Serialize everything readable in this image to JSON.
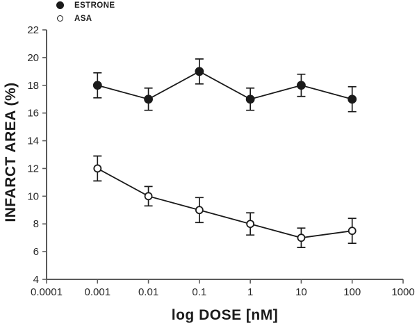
{
  "legend": {
    "items": [
      {
        "label": "ESTRONE",
        "marker": "filled-circle"
      },
      {
        "label": "ASA",
        "marker": "open-circle"
      }
    ]
  },
  "chart_data": {
    "type": "line",
    "title": "",
    "xlabel": "log DOSE [nM]",
    "ylabel": "INFARCT AREA (%)",
    "x_scale": "log",
    "xlim": [
      0.0001,
      1000
    ],
    "ylim": [
      4,
      22
    ],
    "x_ticks": [
      0.0001,
      0.001,
      0.01,
      0.1,
      1,
      10,
      100,
      1000
    ],
    "x_tick_labels": [
      "0.0001",
      "0.001",
      "0.01",
      "0.1",
      "1",
      "10",
      "100",
      "1000"
    ],
    "y_ticks": [
      4,
      6,
      8,
      10,
      12,
      14,
      16,
      18,
      20,
      22
    ],
    "grid": false,
    "legend_position": "top-left",
    "error_bars": true,
    "x": [
      0.001,
      0.01,
      0.1,
      1,
      10,
      100
    ],
    "series": [
      {
        "name": "ESTRONE",
        "marker": "filled-circle",
        "values": [
          18,
          17,
          19,
          17,
          18,
          17
        ],
        "errors": [
          0.9,
          0.8,
          0.9,
          0.8,
          0.8,
          0.9
        ]
      },
      {
        "name": "ASA",
        "marker": "open-circle",
        "values": [
          12,
          10,
          9,
          8,
          7,
          7.5
        ],
        "errors": [
          0.9,
          0.7,
          0.9,
          0.8,
          0.7,
          0.9
        ]
      }
    ],
    "colors": {
      "series": "#1a1a1a",
      "axis": "#5a5a5a",
      "text": "#262626",
      "background": "#ffffff"
    }
  }
}
